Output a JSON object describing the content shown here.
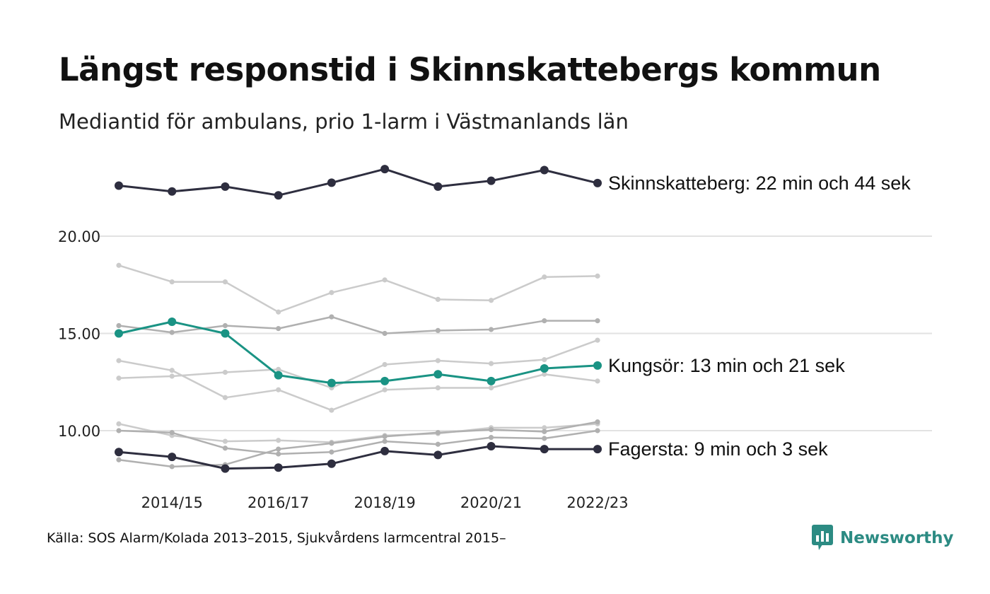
{
  "title": "Längst responstid i Skinnskattebergs kommun",
  "subtitle": "Mediantid för ambulans, prio 1-larm i Västmanlands län",
  "source": "Källa: SOS Alarm/Kolada 2013–2015, Sjukvårdens larmcentral 2015–",
  "brand": "Newsworthy",
  "colors": {
    "highlight_dark": "#2e2e3f",
    "highlight_teal": "#1a9384",
    "context_light": "#cbcbcb",
    "context_mid": "#b0b0b0",
    "gridline": "#e2e2e2",
    "brand": "#2c8b83"
  },
  "chart_data": {
    "type": "line",
    "x": [
      "2013/14",
      "2014/15",
      "2015/16",
      "2016/17",
      "2017/18",
      "2018/19",
      "2019/20",
      "2020/21",
      "2021/22",
      "2022/23"
    ],
    "x_ticks": [
      "2014/15",
      "2016/17",
      "2018/19",
      "2020/21",
      "2022/23"
    ],
    "y_ticks": [
      "10.00",
      "15.00",
      "20.00"
    ],
    "y_tick_values": [
      10,
      15,
      20
    ],
    "ylim": [
      7.5,
      23.8
    ],
    "grid": true,
    "legend": "none",
    "highlighted": [
      {
        "label": "Skinnskatteberg: 22 min och 44 sek",
        "color": "#2e2e3f",
        "values": [
          22.6,
          22.3,
          22.55,
          22.1,
          22.75,
          23.45,
          22.55,
          22.85,
          23.4,
          22.73
        ]
      },
      {
        "label": "Kungsör: 13 min och 21 sek",
        "color": "#1a9384",
        "values": [
          15.0,
          15.6,
          15.0,
          12.85,
          12.45,
          12.55,
          12.9,
          12.55,
          13.2,
          13.35
        ]
      },
      {
        "label": "Fagersta: 9 min och 3 sek",
        "color": "#2e2e3f",
        "values": [
          8.9,
          8.65,
          8.05,
          8.1,
          8.3,
          8.95,
          8.75,
          9.2,
          9.05,
          9.05
        ]
      }
    ],
    "context_series": [
      {
        "color": "#cbcbcb",
        "values": [
          18.5,
          17.65,
          17.65,
          16.1,
          17.1,
          17.75,
          16.75,
          16.7,
          17.9,
          17.95
        ]
      },
      {
        "color": "#b0b0b0",
        "values": [
          15.4,
          15.05,
          15.4,
          15.25,
          15.85,
          15.0,
          15.15,
          15.2,
          15.65,
          15.65
        ]
      },
      {
        "color": "#cbcbcb",
        "values": [
          13.6,
          13.1,
          11.7,
          12.1,
          11.05,
          12.1,
          12.2,
          12.2,
          12.9,
          12.55
        ]
      },
      {
        "color": "#cbcbcb",
        "values": [
          12.7,
          12.8,
          13.0,
          13.15,
          12.2,
          13.4,
          13.6,
          13.45,
          13.65,
          14.65
        ]
      },
      {
        "color": "#cbcbcb",
        "values": [
          10.35,
          9.75,
          9.45,
          9.5,
          9.4,
          9.75,
          9.85,
          10.15,
          10.15,
          10.35
        ]
      },
      {
        "color": "#b0b0b0",
        "values": [
          10.0,
          9.9,
          9.1,
          8.8,
          8.9,
          9.45,
          9.3,
          9.65,
          9.6,
          10.0
        ]
      },
      {
        "color": "#b0b0b0",
        "values": [
          8.5,
          8.15,
          8.25,
          9.05,
          9.35,
          9.7,
          9.9,
          10.05,
          9.95,
          10.45
        ]
      }
    ]
  }
}
